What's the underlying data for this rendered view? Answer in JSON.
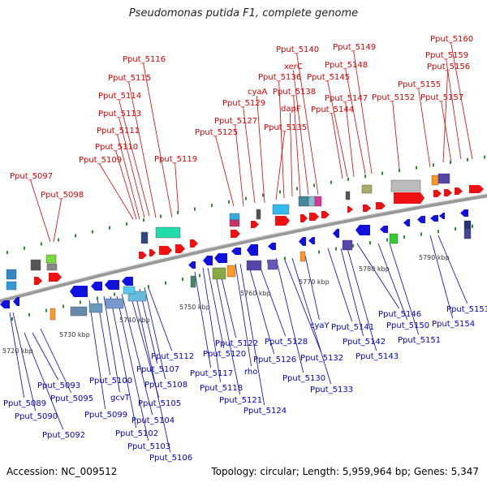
{
  "title": "Pseudomonas putida F1, complete genome",
  "accession": "Accession: NC_009512",
  "summary": "Topology: circular; Length: 5,959,964 bp; Genes: 5,347",
  "colors": {
    "top_label": "#dd0000",
    "bottom_label": "#0000cc",
    "forward_gene": "#ee1111",
    "reverse_gene": "#1111dd",
    "backbone": "#999999",
    "tick": "#338833"
  },
  "scale_labels": [
    "5720 kbp",
    "5730 kbp",
    "5740 kbp",
    "5750 kbp",
    "5760 kbp",
    "5770 kbp",
    "5780 kbp",
    "5790 kbp"
  ],
  "top_labels": [
    "Pput_5097",
    "Pput_5098",
    "Pput_5109",
    "Pput_5110",
    "Pput_5111",
    "Pput_5113",
    "Pput_5114",
    "Pput_5115",
    "Pput_5116",
    "Pput_5119",
    "Pput_5125",
    "Pput_5127",
    "Pput_5129",
    "cyaA",
    "Pput_5135",
    "Pput_5136",
    "dapF",
    "Pput_5138",
    "xerC",
    "Pput_5140",
    "Pput_5144",
    "Pput_5145",
    "Pput_5147",
    "Pput_5148",
    "Pput_5149",
    "Pput_5152",
    "Pput_5155",
    "Pput_5156",
    "Pput_5157",
    "Pput_5159",
    "Pput_5160"
  ],
  "bottom_labels": [
    "Pput_5089",
    "Pput_5090",
    "Pput_5092",
    "Pput_5093",
    "Pput_5095",
    "Pput_5099",
    "Pput_5100",
    "gcvT",
    "Pput_5102",
    "Pput_5103",
    "Pput_5104",
    "Pput_5105",
    "Pput_5106",
    "Pput_5107",
    "Pput_5108",
    "Pput_5112",
    "Pput_5117",
    "Pput_5118",
    "Pput_5120",
    "Pput_5121",
    "Pput_5122",
    "rho",
    "Pput_5124",
    "Pput_5126",
    "Pput_5128",
    "Pput_5130",
    "Pput_5132",
    "Pput_5133",
    "cyaY",
    "Pput_5141",
    "Pput_5142",
    "Pput_5143",
    "Pput_5146",
    "Pput_5150",
    "Pput_5151",
    "Pput_5153",
    "Pput_5154"
  ]
}
